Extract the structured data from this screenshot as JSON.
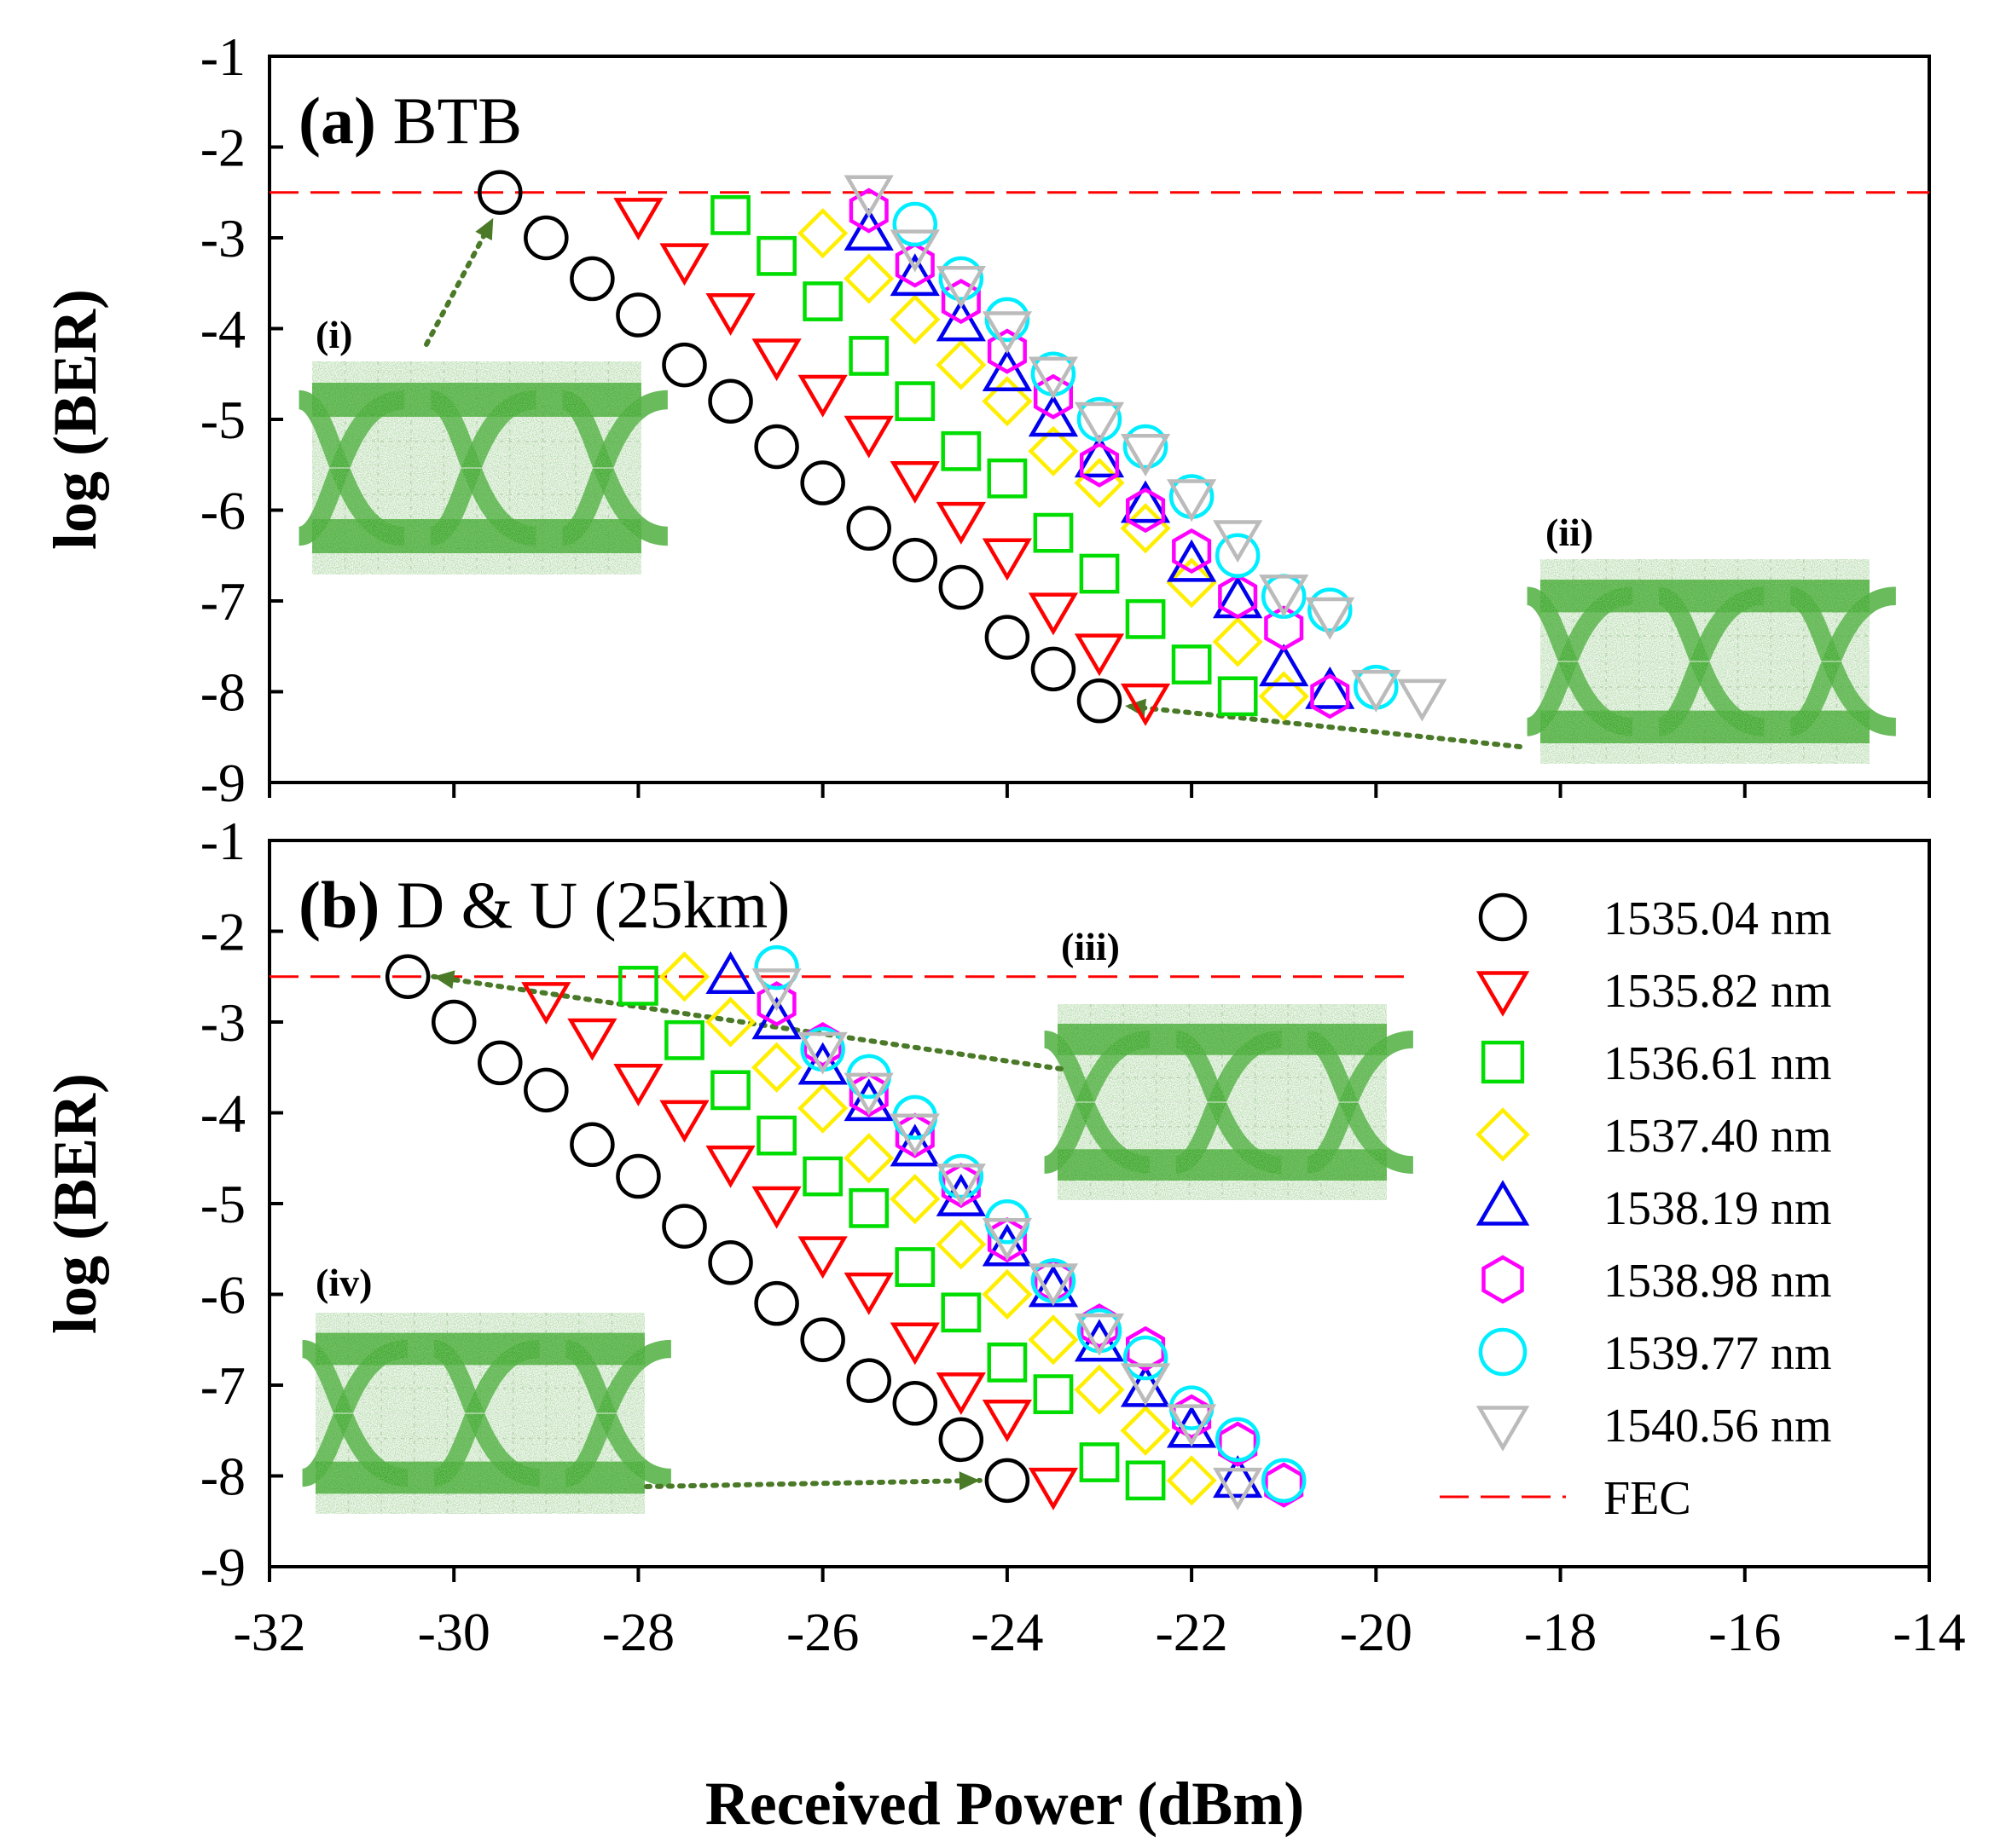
{
  "chart_data": [
    {
      "type": "scatter",
      "panel": "a",
      "panel_label_bold": "(a)",
      "panel_label_rest": " BTB",
      "xlabel": "Received Power (dBm)",
      "ylabel": "log (BER)",
      "xlim": [
        -32,
        -14
      ],
      "ylim": [
        -9,
        -1
      ],
      "xticks": [
        "-32",
        "-30",
        "-28",
        "-26",
        "-24",
        "-22",
        "-20",
        "-18",
        "-16",
        "-14"
      ],
      "yticks": [
        "-1",
        "-2",
        "-3",
        "-4",
        "-5",
        "-6",
        "-7",
        "-8",
        "-9"
      ],
      "fec_threshold": -2.5,
      "insets": [
        {
          "label": "(i)",
          "points_to": [
            -29.5,
            -2.5
          ]
        },
        {
          "label": "(ii)",
          "points_to": [
            -23,
            -8.1
          ]
        }
      ],
      "series": [
        {
          "name": "1535.04 nm",
          "marker": "circle",
          "color": "#000000",
          "x": [
            -29.5,
            -29,
            -28.5,
            -28,
            -27.5,
            -27,
            -26.5,
            -26,
            -25.5,
            -25,
            -24.5,
            -24,
            -23.5,
            -23
          ],
          "y": [
            -2.5,
            -3.0,
            -3.45,
            -3.85,
            -4.4,
            -4.8,
            -5.3,
            -5.7,
            -6.2,
            -6.55,
            -6.85,
            -7.4,
            -7.75,
            -8.1
          ]
        },
        {
          "name": "1535.82 nm",
          "marker": "triangle-down",
          "color": "#ff0000",
          "x": [
            -28,
            -27.5,
            -27,
            -26.5,
            -26,
            -25.5,
            -25,
            -24.5,
            -24,
            -23.5,
            -23,
            -22.5
          ],
          "y": [
            -2.75,
            -3.25,
            -3.8,
            -4.3,
            -4.7,
            -5.15,
            -5.65,
            -6.1,
            -6.5,
            -7.1,
            -7.55,
            -8.1
          ]
        },
        {
          "name": "1536.61 nm",
          "marker": "square",
          "color": "#00dd00",
          "x": [
            -27,
            -26.5,
            -26,
            -25.5,
            -25,
            -24.5,
            -24,
            -23.5,
            -23,
            -22.5,
            -22,
            -21.5
          ],
          "y": [
            -2.75,
            -3.2,
            -3.7,
            -4.3,
            -4.8,
            -5.35,
            -5.65,
            -6.25,
            -6.7,
            -7.2,
            -7.7,
            -8.05
          ]
        },
        {
          "name": "1537.40 nm",
          "marker": "diamond",
          "color": "#ffee00",
          "x": [
            -26,
            -25.5,
            -25,
            -24.5,
            -24,
            -23.5,
            -23,
            -22.5,
            -22,
            -21.5,
            -21
          ],
          "y": [
            -2.95,
            -3.45,
            -3.9,
            -4.4,
            -4.8,
            -5.35,
            -5.7,
            -6.2,
            -6.8,
            -7.45,
            -8.05
          ]
        },
        {
          "name": "1538.19 nm",
          "marker": "triangle-up",
          "color": "#0000ee",
          "x": [
            -25.5,
            -25,
            -24.5,
            -24,
            -23.5,
            -23,
            -22.5,
            -22,
            -21.5,
            -21,
            -20.5
          ],
          "y": [
            -2.95,
            -3.45,
            -3.95,
            -4.5,
            -5.0,
            -5.45,
            -5.95,
            -6.6,
            -7.0,
            -7.75,
            -8.0
          ]
        },
        {
          "name": "1538.98 nm",
          "marker": "hexagon",
          "color": "#ff00ff",
          "x": [
            -25.5,
            -25,
            -24.5,
            -24,
            -23.5,
            -23,
            -22.5,
            -22,
            -21.5,
            -21,
            -20.5
          ],
          "y": [
            -2.7,
            -3.3,
            -3.7,
            -4.25,
            -4.75,
            -5.5,
            -6.0,
            -6.45,
            -6.95,
            -7.3,
            -8.05
          ]
        },
        {
          "name": "1539.77 nm",
          "marker": "circle",
          "color": "#00eeff",
          "x": [
            -25,
            -24.5,
            -24,
            -23.5,
            -23,
            -22.5,
            -22,
            -21.5,
            -21,
            -20.5,
            -20
          ],
          "y": [
            -2.85,
            -3.45,
            -3.9,
            -4.5,
            -5.0,
            -5.3,
            -5.85,
            -6.5,
            -6.95,
            -7.1,
            -7.95
          ]
        },
        {
          "name": "1540.56 nm",
          "marker": "triangle-down",
          "color": "#bbbbbb",
          "x": [
            -25.5,
            -25,
            -24.5,
            -24,
            -23.5,
            -23,
            -22.5,
            -22,
            -21.5,
            -21,
            -20.5,
            -20,
            -19.5
          ],
          "y": [
            -2.5,
            -3.1,
            -3.5,
            -4.0,
            -4.5,
            -5.0,
            -5.35,
            -5.85,
            -6.3,
            -6.9,
            -7.15,
            -7.95,
            -8.05
          ]
        }
      ]
    },
    {
      "type": "scatter",
      "panel": "b",
      "panel_label_bold": "(b)",
      "panel_label_rest": " D & U (25km)",
      "xlabel": "Received Power (dBm)",
      "ylabel": "log (BER)",
      "xlim": [
        -32,
        -14
      ],
      "ylim": [
        -9,
        -1
      ],
      "xticks": [
        "-32",
        "-30",
        "-28",
        "-26",
        "-24",
        "-22",
        "-20",
        "-18",
        "-16",
        "-14"
      ],
      "yticks": [
        "-1",
        "-2",
        "-3",
        "-4",
        "-5",
        "-6",
        "-7",
        "-8",
        "-9"
      ],
      "fec_threshold": -2.5,
      "insets": [
        {
          "label": "(iii)",
          "points_to": [
            -30.5,
            -2.5
          ]
        },
        {
          "label": "(iv)",
          "points_to": [
            -24,
            -8.05
          ]
        }
      ],
      "series": [
        {
          "name": "1535.04 nm",
          "marker": "circle",
          "color": "#000000",
          "x": [
            -30.5,
            -30,
            -29.5,
            -29,
            -28.5,
            -28,
            -27.5,
            -27,
            -26.5,
            -26,
            -25.5,
            -25,
            -24.5,
            -24
          ],
          "y": [
            -2.5,
            -3.0,
            -3.45,
            -3.75,
            -4.35,
            -4.7,
            -5.25,
            -5.65,
            -6.1,
            -6.5,
            -6.95,
            -7.2,
            -7.6,
            -8.05
          ]
        },
        {
          "name": "1535.82 nm",
          "marker": "triangle-down",
          "color": "#ff0000",
          "x": [
            -29,
            -28.5,
            -28,
            -27.5,
            -27,
            -26.5,
            -26,
            -25.5,
            -25,
            -24.5,
            -24,
            -23.5
          ],
          "y": [
            -2.75,
            -3.15,
            -3.65,
            -4.05,
            -4.55,
            -5.0,
            -5.55,
            -5.95,
            -6.5,
            -7.05,
            -7.35,
            -8.1
          ]
        },
        {
          "name": "1536.61 nm",
          "marker": "square",
          "color": "#00dd00",
          "x": [
            -28,
            -27.5,
            -27,
            -26.5,
            -26,
            -25.5,
            -25,
            -24.5,
            -24,
            -23.5,
            -23,
            -22.5
          ],
          "y": [
            -2.6,
            -3.2,
            -3.75,
            -4.25,
            -4.7,
            -5.05,
            -5.7,
            -6.2,
            -6.75,
            -7.1,
            -7.85,
            -8.05
          ]
        },
        {
          "name": "1537.40 nm",
          "marker": "diamond",
          "color": "#ffee00",
          "x": [
            -27.5,
            -27,
            -26.5,
            -26,
            -25.5,
            -25,
            -24.5,
            -24,
            -23.5,
            -23,
            -22.5,
            -22
          ],
          "y": [
            -2.5,
            -3.0,
            -3.5,
            -3.95,
            -4.5,
            -4.95,
            -5.45,
            -6.0,
            -6.5,
            -7.05,
            -7.5,
            -8.05
          ]
        },
        {
          "name": "1538.19 nm",
          "marker": "triangle-up",
          "color": "#0000ee",
          "x": [
            -27,
            -26.5,
            -26,
            -25.5,
            -25,
            -24.5,
            -24,
            -23.5,
            -23,
            -22.5,
            -22,
            -21.5
          ],
          "y": [
            -2.5,
            -3.0,
            -3.5,
            -3.9,
            -4.4,
            -4.95,
            -5.5,
            -5.95,
            -6.55,
            -7.05,
            -7.5,
            -8.05
          ]
        },
        {
          "name": "1538.98 nm",
          "marker": "hexagon",
          "color": "#ff00ff",
          "x": [
            -26.5,
            -26,
            -25.5,
            -25,
            -24.5,
            -24,
            -23.5,
            -23,
            -22.5,
            -22,
            -21.5,
            -21
          ],
          "y": [
            -2.8,
            -3.25,
            -3.8,
            -4.25,
            -4.8,
            -5.4,
            -5.85,
            -6.35,
            -6.6,
            -7.35,
            -7.65,
            -8.1
          ]
        },
        {
          "name": "1539.77 nm",
          "marker": "circle",
          "color": "#00eeff",
          "x": [
            -26.5,
            -26,
            -25.5,
            -25,
            -24.5,
            -24,
            -23.5,
            -23,
            -22.5,
            -22,
            -21.5,
            -21
          ],
          "y": [
            -2.4,
            -3.3,
            -3.6,
            -4.05,
            -4.7,
            -5.2,
            -5.85,
            -6.4,
            -6.7,
            -7.25,
            -7.6,
            -8.05
          ]
        },
        {
          "name": "1540.56 nm",
          "marker": "triangle-down",
          "color": "#bbbbbb",
          "x": [
            -26.5,
            -26,
            -25.5,
            -25,
            -24.5,
            -24,
            -23.5,
            -23,
            -22.5,
            -22,
            -21.5
          ],
          "y": [
            -2.6,
            -3.3,
            -3.75,
            -4.2,
            -4.75,
            -5.35,
            -5.85,
            -6.4,
            -6.95,
            -7.4,
            -8.1
          ]
        }
      ],
      "legend": {
        "placement": "right",
        "entries": [
          {
            "label": "1535.04 nm",
            "marker": "circle",
            "color": "#000000"
          },
          {
            "label": "1535.82 nm",
            "marker": "triangle-down",
            "color": "#ff0000"
          },
          {
            "label": "1536.61 nm",
            "marker": "square",
            "color": "#00dd00"
          },
          {
            "label": "1537.40 nm",
            "marker": "diamond",
            "color": "#ffee00"
          },
          {
            "label": "1538.19 nm",
            "marker": "triangle-up",
            "color": "#0000ee"
          },
          {
            "label": "1538.98 nm",
            "marker": "hexagon",
            "color": "#ff00ff"
          },
          {
            "label": "1539.77 nm",
            "marker": "circle",
            "color": "#00eeff"
          },
          {
            "label": "1540.56 nm",
            "marker": "triangle-down",
            "color": "#bbbbbb"
          },
          {
            "label": "FEC",
            "marker": "dashed-line",
            "color": "#ff0000"
          }
        ]
      }
    }
  ],
  "colors": {
    "fec_line": "#ff0000",
    "eye_pattern": "#44aa33",
    "arrow": "#4a7a28"
  }
}
